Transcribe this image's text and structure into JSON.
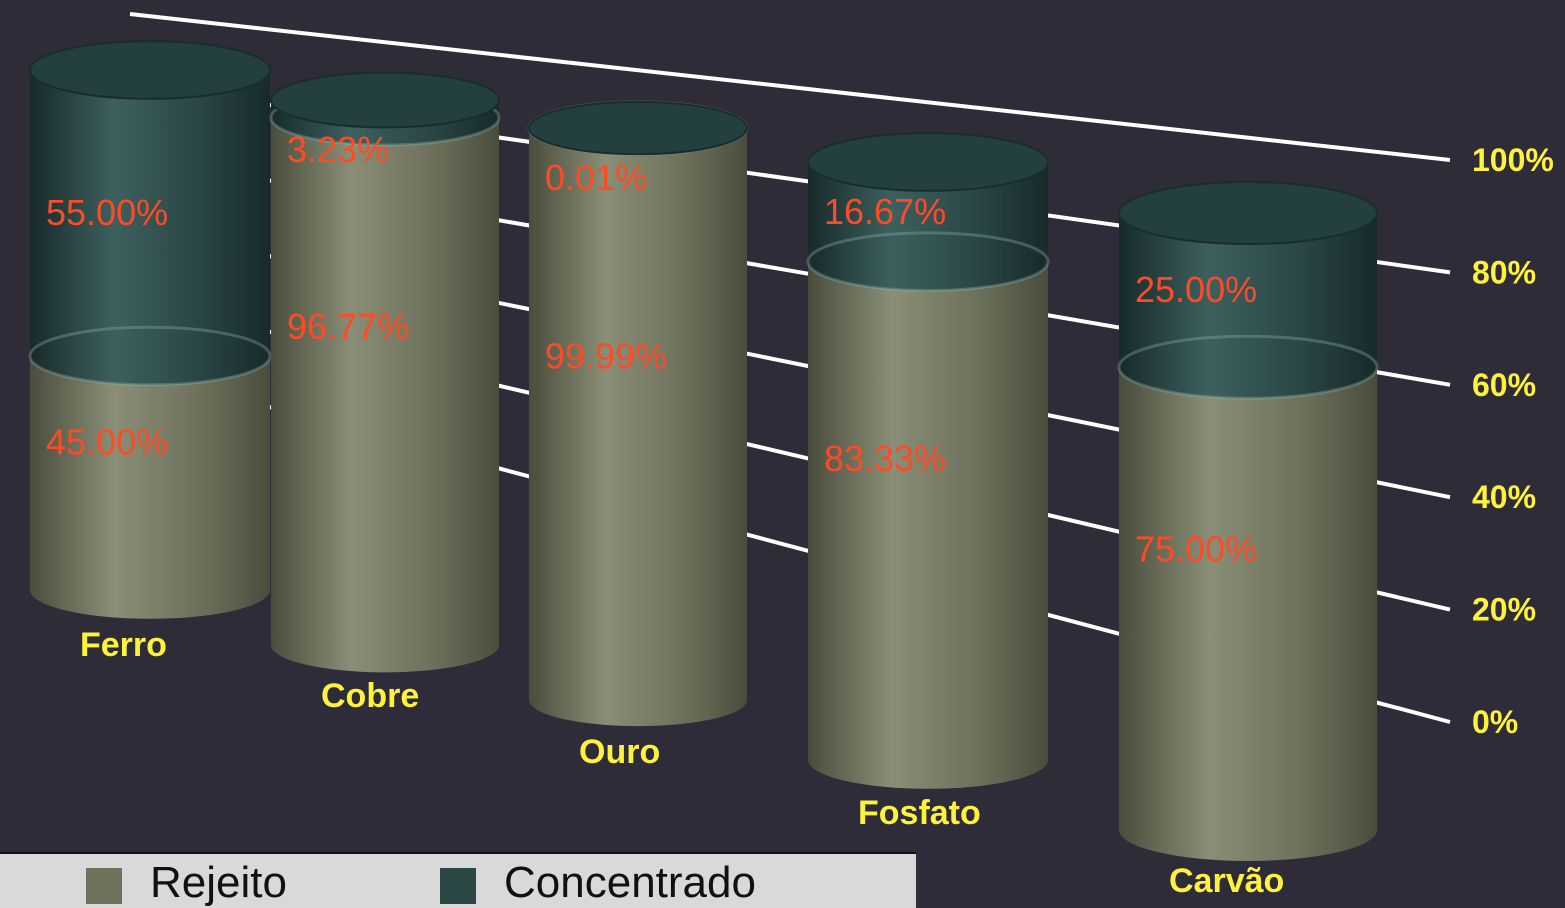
{
  "chart_data": {
    "type": "bar",
    "stacked": true,
    "normalized_percent": true,
    "categories": [
      "Ferro",
      "Cobre",
      "Ouro",
      "Fosfato",
      "Carvão"
    ],
    "series": [
      {
        "name": "Rejeito",
        "values": [
          45.0,
          96.77,
          99.99,
          83.33,
          75.0
        ],
        "labels": [
          "45.00%",
          "96.77%",
          "99.99%",
          "83.33%",
          "75.00%"
        ]
      },
      {
        "name": "Concentrado",
        "values": [
          55.0,
          3.23,
          0.01,
          16.67,
          25.0
        ],
        "labels": [
          "55.00%",
          "3.23%",
          "0.01%",
          "16.67%",
          "25.00%"
        ]
      }
    ],
    "y_ticks": [
      "0%",
      "20%",
      "40%",
      "60%",
      "80%",
      "100%"
    ],
    "ylim": [
      0,
      100
    ],
    "grid": true,
    "legend_position": "bottom-left"
  },
  "colors": {
    "background": "#2d2c38",
    "rejeito": "#6e725c",
    "concentrado": "#2a4645",
    "data_label": "#ff4a26",
    "category_label": "#fff23d",
    "tick_label": "#fff23d",
    "gridline": "#ffffff"
  },
  "legend": {
    "rejeito_label": "Rejeito",
    "concentrado_label": "Concentrado"
  }
}
